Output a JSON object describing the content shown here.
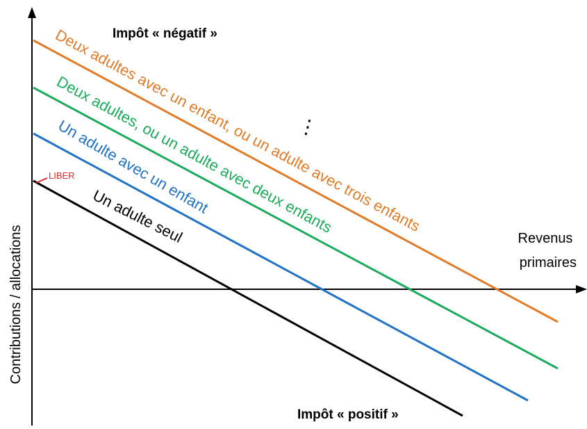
{
  "header_label": "Impôt « négatif »",
  "footer_label": "Impôt « positif »",
  "x_axis_label": [
    "Revenus",
    "primaires"
  ],
  "y_axis_label": "Contributions / allocations",
  "liber_label": "LIBER",
  "ellipsis": "⋮",
  "lines": [
    {
      "label": "Deux adultes avec un enfant, ou un adulte avec trois enfants",
      "color": "#E07B27"
    },
    {
      "label": "Deux adultes, ou un adulte avec deux enfants",
      "color": "#1BAA5A"
    },
    {
      "label": "Un adulte avec un enfant",
      "color": "#1F72C4"
    },
    {
      "label": "Un adulte seul",
      "color": "#000000"
    }
  ],
  "liber_color": "#E0262B"
}
